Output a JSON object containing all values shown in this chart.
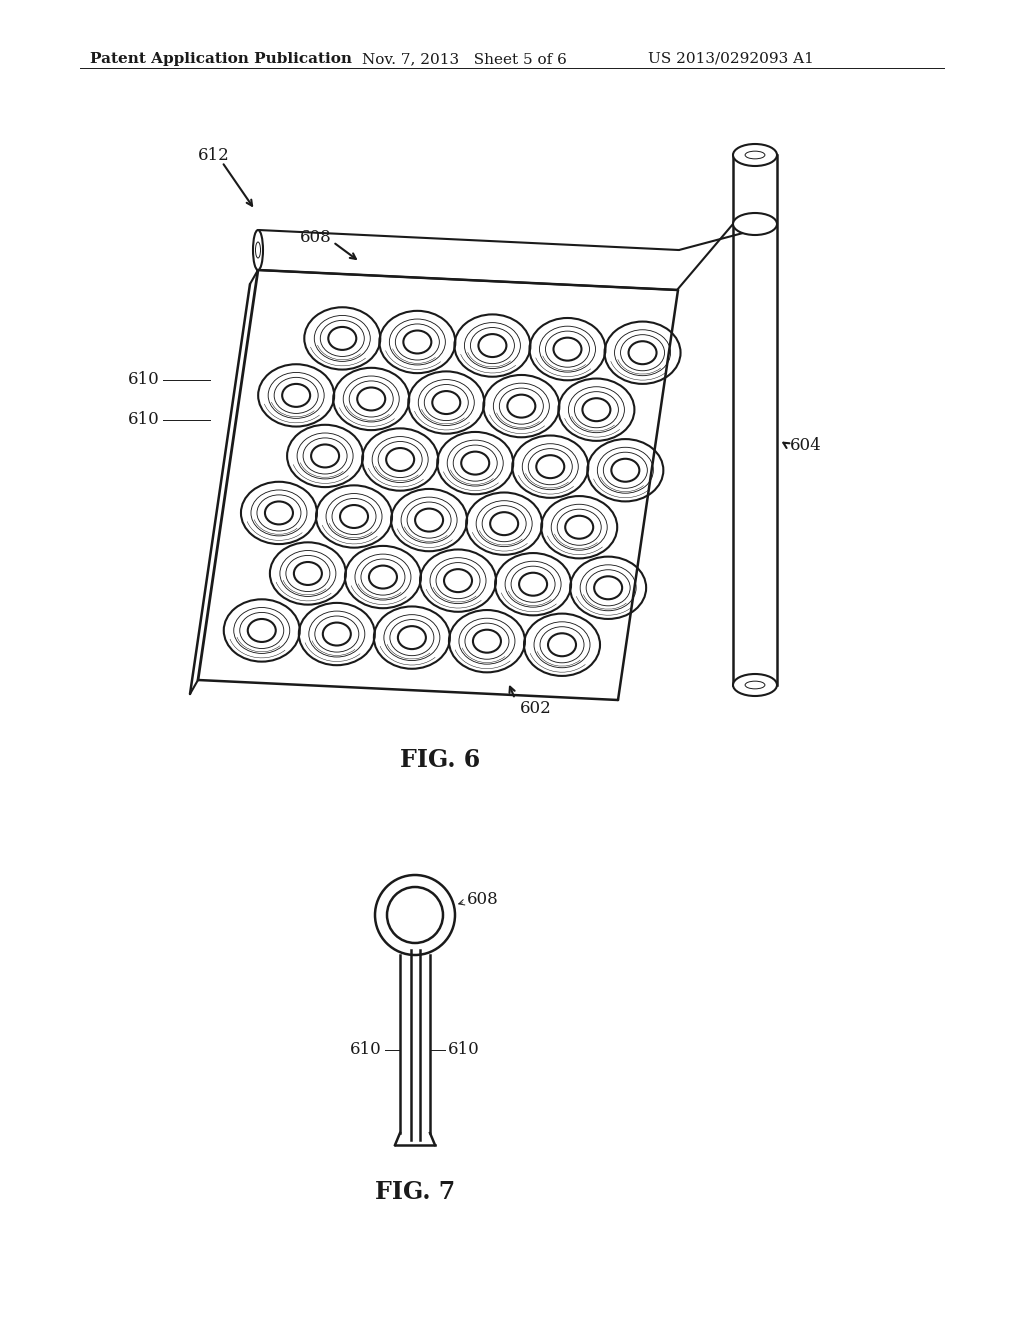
{
  "background_color": "#ffffff",
  "header_left": "Patent Application Publication",
  "header_mid": "Nov. 7, 2013   Sheet 5 of 6",
  "header_right": "US 2013/0292093 A1",
  "header_fontsize": 11,
  "fig6_label": "FIG. 6",
  "fig7_label": "FIG. 7",
  "label_612": "612",
  "label_608": "608",
  "label_610a": "610",
  "label_610b": "610",
  "label_604": "604",
  "label_602": "602",
  "label_608b": "608",
  "label_610c": "610",
  "label_610d": "610",
  "line_color": "#1a1a1a",
  "line_width": 1.5,
  "thin_line": 0.7
}
